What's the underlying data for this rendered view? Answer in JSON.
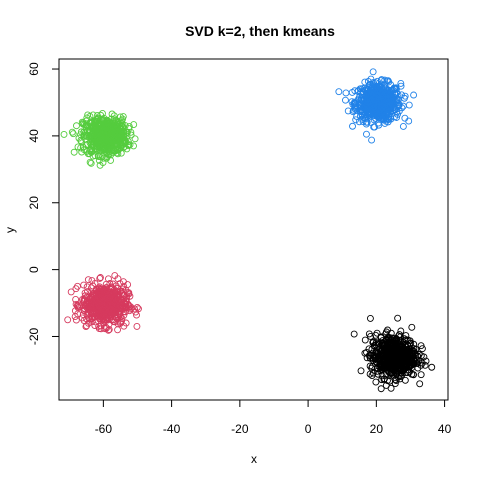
{
  "chart_data": {
    "type": "scatter",
    "title": "SVD k=2, then kmeans",
    "xlabel": "x",
    "ylabel": "y",
    "xlim": [
      -73,
      41
    ],
    "ylim": [
      -39,
      63
    ],
    "xticks": [
      -60,
      -40,
      -20,
      0,
      20,
      40
    ],
    "yticks": [
      -20,
      0,
      20,
      40,
      60
    ],
    "xtick_labels": [
      "-60",
      "-40",
      "-20",
      "0",
      "20",
      "40"
    ],
    "ytick_labels": [
      "-20",
      "0",
      "20",
      "40",
      "60"
    ],
    "grid": false,
    "legend": "none",
    "marker": "open-circle",
    "series": [
      {
        "color": "#2182E8",
        "center": [
          20.5,
          50.0
        ],
        "spread": [
          3.3,
          2.8
        ],
        "count": 600
      },
      {
        "color": "#55CC3E",
        "center": [
          -59.5,
          40.0
        ],
        "spread": [
          3.2,
          2.8
        ],
        "count": 600
      },
      {
        "color": "#D63A5E",
        "center": [
          -59.5,
          -10.5
        ],
        "spread": [
          3.3,
          3.0
        ],
        "count": 600
      },
      {
        "color": "#000000",
        "center": [
          25.0,
          -26.0
        ],
        "spread": [
          3.4,
          3.2
        ],
        "count": 600
      }
    ]
  }
}
